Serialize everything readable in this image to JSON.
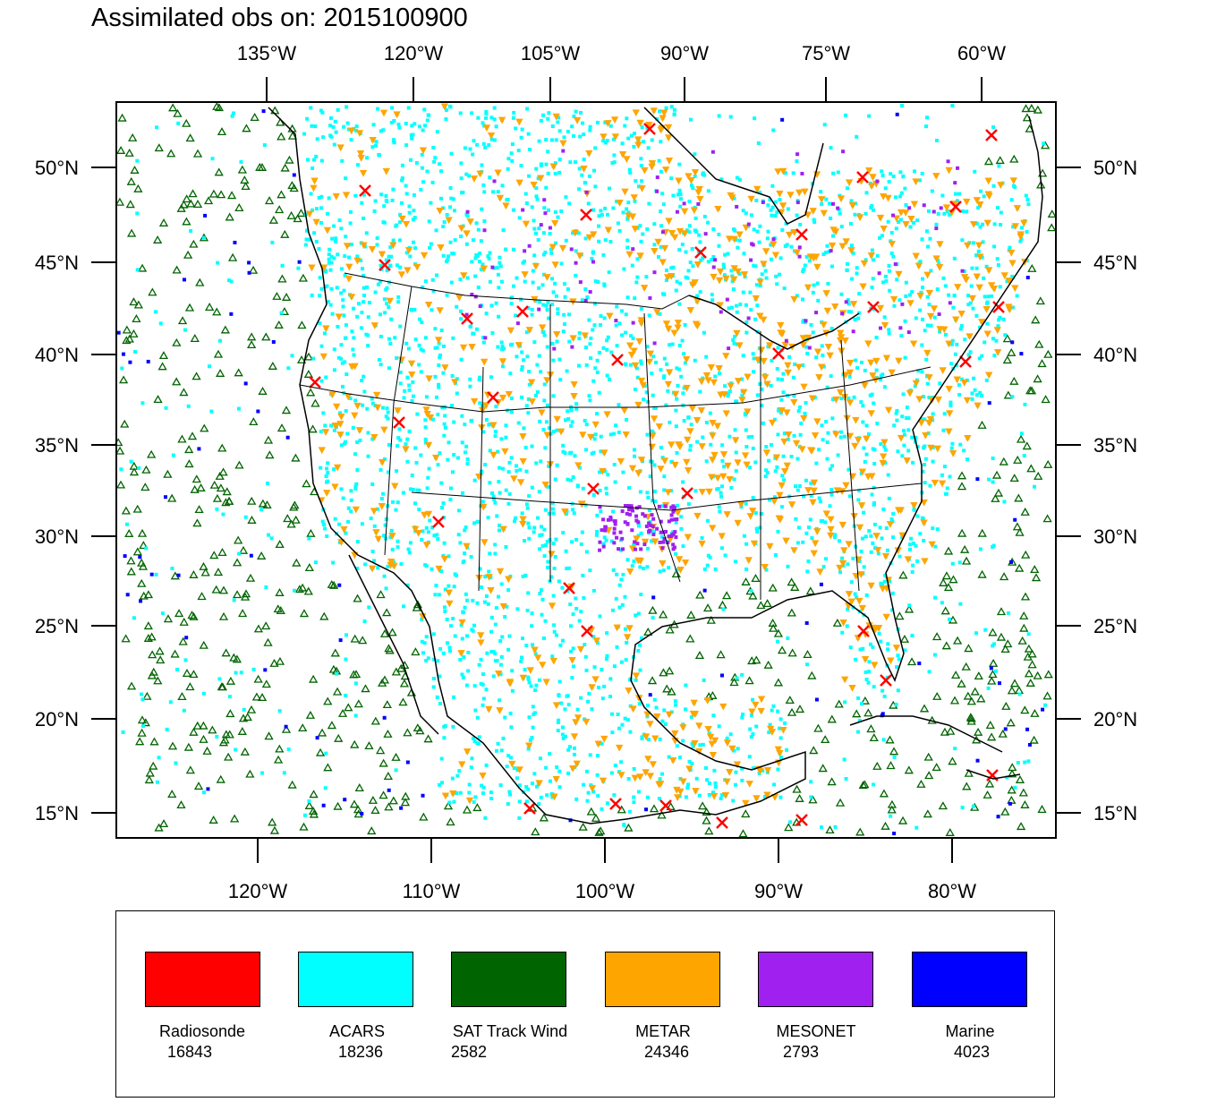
{
  "title": "Assimilated obs on: 2015100900",
  "top_lon_labels": [
    "135°W",
    "120°W",
    "105°W",
    "90°W",
    "75°W",
    "60°W"
  ],
  "bottom_lon_labels": [
    "120°W",
    "110°W",
    "100°W",
    "90°W",
    "80°W"
  ],
  "lat_labels": [
    "50°N",
    "45°N",
    "40°N",
    "35°N",
    "30°N",
    "25°N",
    "20°N",
    "15°N"
  ],
  "legend": [
    {
      "name": "Radiosonde",
      "count": "16843",
      "color": "#ff0000"
    },
    {
      "name": "ACARS",
      "count": "18236",
      "color": "#00ffff"
    },
    {
      "name": "SAT Track Wind",
      "count": "2582",
      "color": "#006400"
    },
    {
      "name": "METAR",
      "count": "24346",
      "color": "#ffa500"
    },
    {
      "name": "MESONET",
      "count": "2793",
      "color": "#a020f0"
    },
    {
      "name": "Marine",
      "count": "4023",
      "color": "#0000ff"
    }
  ],
  "colors": {
    "radiosonde": "#ff0000",
    "acars": "#00ffff",
    "sat_track_wind": "#006400",
    "metar": "#ffa500",
    "mesonet": "#a020f0",
    "marine": "#0000ff",
    "coastline": "#000000"
  }
}
